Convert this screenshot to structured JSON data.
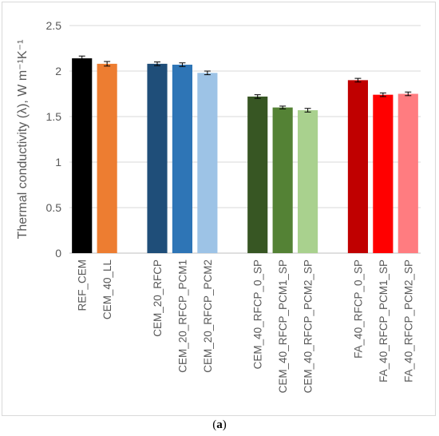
{
  "caption": {
    "open": "(",
    "letter": "a",
    "close": ")"
  },
  "chart_data": {
    "type": "bar",
    "ylabel": "Thermal conductivity (λ),  W m⁻¹K⁻¹",
    "ylim": [
      0,
      2.5
    ],
    "yticks": [
      0,
      0.5,
      1,
      1.5,
      2,
      2.5
    ],
    "grid": true,
    "groups": [
      {
        "bars": [
          {
            "label": "REF_CEM",
            "value": 2.14,
            "error": 0.025,
            "color": "#000000"
          },
          {
            "label": "CEM_40_LL",
            "value": 2.08,
            "error": 0.025,
            "color": "#ed7d31"
          }
        ]
      },
      {
        "bars": [
          {
            "label": "CEM_20_RFCP",
            "value": 2.08,
            "error": 0.02,
            "color": "#1f4e79"
          },
          {
            "label": "CEM_20_RFCP_PCM1",
            "value": 2.07,
            "error": 0.02,
            "color": "#2e75b6"
          },
          {
            "label": "CEM_20_RFCP_PCM2",
            "value": 1.98,
            "error": 0.02,
            "color": "#9dc3e6"
          }
        ]
      },
      {
        "bars": [
          {
            "label": "CEM_40_RFCP_0_SP",
            "value": 1.72,
            "error": 0.02,
            "color": "#375623"
          },
          {
            "label": "CEM_40_RFCP_PCM1_SP",
            "value": 1.6,
            "error": 0.015,
            "color": "#548235"
          },
          {
            "label": "CEM_40_RFCP_PCM2_SP",
            "value": 1.57,
            "error": 0.02,
            "color": "#a9d18e"
          }
        ]
      },
      {
        "bars": [
          {
            "label": "FA_40_RFCP_0_SP",
            "value": 1.9,
            "error": 0.02,
            "color": "#c00000"
          },
          {
            "label": "FA_40_RFCP_PCM1_SP",
            "value": 1.74,
            "error": 0.02,
            "color": "#ff0000"
          },
          {
            "label": "FA_40_RFCP_PCM2_SP",
            "value": 1.75,
            "error": 0.02,
            "color": "#ff7c80"
          }
        ]
      }
    ]
  }
}
